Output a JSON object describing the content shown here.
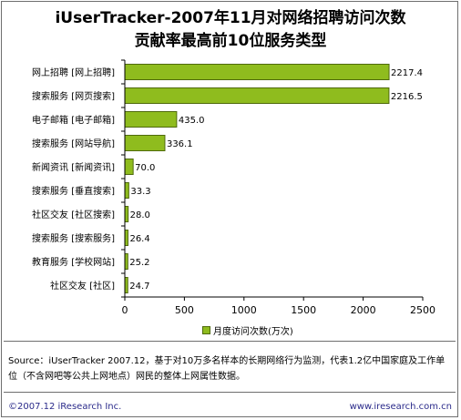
{
  "title_line1": "iUserTracker-2007年11月对网络招聘访问次数",
  "title_line2": "贡献率最高前10位服务类型",
  "chart_data": {
    "type": "bar",
    "orientation": "horizontal",
    "categories": [
      "网上招聘 [网上招聘]",
      "搜索服务 [网页搜索]",
      "电子邮箱 [电子邮箱]",
      "搜索服务 [网站导航]",
      "新闻资讯 [新闻资讯]",
      "搜索服务 [垂直搜索]",
      "社区交友 [社区搜索]",
      "搜索服务 [搜索服务]",
      "教育服务 [学校网站]",
      "社区交友 [社区]"
    ],
    "series": [
      {
        "name": "月度访问次数(万次)",
        "values": [
          2217.4,
          2216.5,
          435.0,
          336.1,
          70.0,
          33.3,
          28.0,
          26.4,
          25.2,
          24.7
        ],
        "value_labels": [
          "2217.4",
          "2216.5",
          "435.0",
          "336.1",
          "70.0",
          "33.3",
          "28.0",
          "26.4",
          "25.2",
          "24.7"
        ]
      }
    ],
    "xlim": [
      0,
      2500
    ],
    "ticks": [
      "0",
      "500",
      "1000",
      "1500",
      "2000",
      "2500"
    ],
    "grid": false,
    "legend_position": "bottom",
    "bar_color": "#8fbc1e",
    "bar_edge_color": "#4f6a0c"
  },
  "source_text": "Source：iUserTracker 2007.12，基于对10万多名样本的长期网络行为监测，代表1.2亿中国家庭及工作单位（不含网吧等公共上网地点）网民的整体上网属性数据。",
  "copyright": "©2007.12 iResearch Inc.",
  "website": "www.iresearch.com.cn"
}
